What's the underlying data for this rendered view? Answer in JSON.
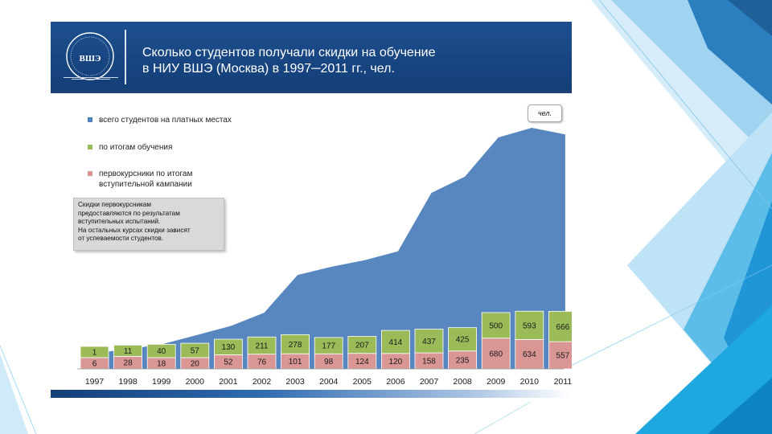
{
  "header": {
    "title_lines": [
      "Сколько студентов получали скидки на обучение",
      "в НИУ ВШЭ (Москва) в 1997─2011 гг., чел."
    ],
    "logo_text": "ВШЭ"
  },
  "unit_label": "чел.",
  "note_lines": [
    "Скидки первокурсникам",
    "предоставляются по результатам",
    "вступительных испытаний.",
    "На остальных курсах скидки зависят",
    "от успеваемости студентов."
  ],
  "colors": {
    "total": "#4f81bd",
    "performance": "#9bbb59",
    "freshmen": "#d99694",
    "banner": "#1a4a88",
    "accent_triangles": "#2e8fd0"
  },
  "legend": [
    {
      "name": "всего студентов на платных местах",
      "lines": [
        "всего студентов на платных местах"
      ],
      "color": "#4f81bd"
    },
    {
      "name": "по итогам обучения",
      "lines": [
        "по итогам обучения"
      ],
      "color": "#9bbb59"
    },
    {
      "name": "первокурсники по итогам вступительной кампании",
      "lines": [
        "первокурсники по итогам",
        "вступительной кампании"
      ],
      "color": "#d99694"
    }
  ],
  "chart_data": {
    "type": "bar",
    "stacked": true,
    "categories": [
      "1997",
      "1998",
      "1999",
      "2000",
      "2001",
      "2002",
      "2003",
      "2004",
      "2005",
      "2006",
      "2007",
      "2008",
      "2009",
      "2010",
      "2011"
    ],
    "series": [
      {
        "name": "первокурсники по итогам вступительной кампании",
        "values": [
          6,
          28,
          18,
          20,
          52,
          76,
          101,
          98,
          124,
          120,
          158,
          235,
          680,
          634,
          557
        ],
        "color": "#d99694"
      },
      {
        "name": "по итогам обучения",
        "values": [
          1,
          11,
          40,
          57,
          130,
          211,
          278,
          177,
          207,
          414,
          437,
          425,
          500,
          593,
          666
        ],
        "color": "#9bbb59"
      }
    ],
    "area": {
      "name": "всего студентов на платных местах",
      "values": [
        220,
        270,
        340,
        460,
        580,
        760,
        1270,
        1380,
        1470,
        1590,
        2380,
        2600,
        3130,
        3260,
        3170
      ],
      "color": "#4f81bd"
    },
    "legend_position": "top-left",
    "grid": false
  }
}
